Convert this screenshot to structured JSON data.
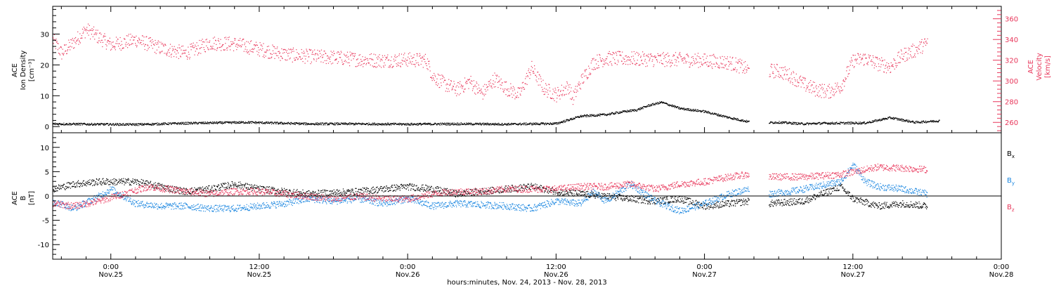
{
  "colors": {
    "density": "#000000",
    "velocity": "#e8365a",
    "bx": "#000000",
    "by": "#1a86e0",
    "bz": "#e8365a",
    "axis": "#000000"
  },
  "time_axis": {
    "label": "hours:minutes, Nov. 24, 2013 - Nov. 28, 2013",
    "range_hours_from_nov24_0000": [
      19.3,
      96
    ],
    "ticks": [
      {
        "time": "0:00",
        "date": "Nov.25"
      },
      {
        "time": "12:00",
        "date": "Nov.25"
      },
      {
        "time": "0:00",
        "date": "Nov.26"
      },
      {
        "time": "12:00",
        "date": "Nov.26"
      },
      {
        "time": "0:00",
        "date": "Nov.27"
      },
      {
        "time": "12:00",
        "date": "Nov.27"
      },
      {
        "time": "0:00",
        "date": "Nov.28"
      }
    ]
  },
  "chart_data": [
    {
      "type": "scatter",
      "panel": "plasma",
      "left_axis": {
        "label_lines": [
          "ACE",
          "Ion Density",
          "[cm⁻³]"
        ],
        "ylim": [
          -2,
          39
        ],
        "ticks": [
          "0",
          "10",
          "20",
          "30"
        ]
      },
      "right_axis": {
        "label_lines": [
          "ACE",
          "Velocity",
          "[km/s]"
        ],
        "ylim": [
          250,
          372
        ],
        "ticks": [
          "260",
          "280",
          "300",
          "320",
          "340",
          "360"
        ]
      },
      "series": [
        {
          "name": "Ion Density",
          "axis": "left",
          "x_hours": [
            19.3,
            22,
            26,
            30,
            35,
            40,
            44,
            48,
            52,
            56,
            58,
            60,
            62,
            64,
            65.5,
            66.5,
            67.5,
            68.5,
            70,
            72,
            74,
            76,
            78,
            80,
            81.5,
            85,
            87,
            89,
            91
          ],
          "values": [
            1.0,
            0.9,
            0.8,
            1.2,
            1.5,
            1.0,
            1.0,
            0.9,
            1.0,
            0.9,
            1.0,
            1.1,
            3.5,
            4.0,
            5.0,
            5.5,
            7.0,
            8.0,
            6.0,
            5.0,
            3.0,
            1.3,
            1.5,
            1.0,
            1.2,
            1.3,
            3.0,
            1.5,
            2.0
          ]
        },
        {
          "name": "Velocity",
          "axis": "right",
          "x_hours": [
            19.3,
            20,
            21,
            22,
            24,
            26,
            28,
            30,
            32,
            34,
            36,
            38,
            40,
            42,
            44,
            46,
            48,
            49.5,
            50,
            51,
            52,
            53,
            54,
            55,
            56,
            57,
            58,
            59,
            60,
            61,
            61.3,
            62,
            63,
            64,
            66,
            68,
            70,
            72,
            74,
            75,
            75.6,
            77.2,
            78,
            79,
            80,
            81,
            82,
            83,
            84,
            85,
            86,
            87,
            88,
            89,
            90
          ],
          "values": [
            340,
            327,
            338,
            350,
            335,
            340,
            332,
            327,
            337,
            336,
            331,
            326,
            324,
            323,
            321,
            320,
            321,
            320,
            305,
            297,
            292,
            300,
            288,
            302,
            293,
            287,
            313,
            293,
            287,
            295,
            283,
            300,
            318,
            322,
            322,
            321,
            321,
            320,
            318,
            314,
            310,
            310,
            310,
            305,
            297,
            292,
            290,
            295,
            320,
            322,
            317,
            314,
            325,
            330,
            337
          ]
        }
      ]
    },
    {
      "type": "scatter",
      "panel": "magnetic_field",
      "left_axis": {
        "label_lines": [
          "ACE",
          "B",
          "[nT]"
        ],
        "ylim": [
          -13,
          13
        ],
        "ticks": [
          "-10",
          "-5",
          "0",
          "5",
          "10"
        ]
      },
      "series": [
        {
          "name": "Bx",
          "x_hours": [
            19.3,
            21,
            23,
            26,
            30,
            32,
            34,
            36,
            40,
            44,
            48,
            50,
            52,
            56,
            58,
            60,
            62,
            64,
            66,
            68,
            70,
            72,
            74,
            75.6,
            77.2,
            80,
            83,
            84,
            86,
            88,
            90
          ],
          "values": [
            1.5,
            2.5,
            3.0,
            3.0,
            1.0,
            1.5,
            2.5,
            1.5,
            0.5,
            1.0,
            2.0,
            1.5,
            0.5,
            1.5,
            2.0,
            1.0,
            0.5,
            0.0,
            -0.5,
            -1.0,
            -0.5,
            -2.0,
            -1.5,
            -1.0,
            -1.5,
            -1.0,
            2.0,
            -0.5,
            -2.0,
            -1.5,
            -2.0
          ]
        },
        {
          "name": "By",
          "x_hours": [
            19.3,
            21,
            23,
            24,
            26,
            28,
            30,
            32,
            34,
            36,
            38,
            40,
            42,
            44,
            46,
            48,
            50,
            52,
            56,
            58,
            60,
            62,
            63,
            64,
            66,
            68,
            70,
            72,
            74,
            75.6,
            77.2,
            79,
            81,
            83,
            84,
            85,
            86,
            88,
            90
          ],
          "values": [
            -1.0,
            -2.5,
            0.0,
            1.5,
            -1.5,
            -2.0,
            -2.0,
            -2.5,
            -2.5,
            -2.0,
            -1.5,
            -0.5,
            -1.0,
            -0.5,
            -1.5,
            -0.5,
            -2.0,
            -1.5,
            -2.0,
            -2.5,
            -1.0,
            -1.5,
            1.0,
            -1.0,
            2.5,
            -1.0,
            -3.0,
            -1.5,
            0.5,
            1.5,
            0.5,
            1.0,
            2.0,
            3.0,
            6.5,
            3.0,
            2.0,
            1.5,
            0.5
          ]
        },
        {
          "name": "Bz",
          "x_hours": [
            19.3,
            21,
            23,
            25,
            27,
            30,
            32,
            34,
            36,
            38,
            40,
            42,
            44,
            46,
            48,
            50,
            52,
            54,
            56,
            58,
            60,
            62,
            64,
            66,
            68,
            70,
            72,
            74,
            75.6,
            77.2,
            80,
            83,
            84,
            86,
            88,
            90
          ],
          "values": [
            -1.5,
            -2.0,
            -1.0,
            0.5,
            2.0,
            1.0,
            0.5,
            1.0,
            1.0,
            0.5,
            0.0,
            -0.5,
            0.0,
            -0.5,
            -0.5,
            0.5,
            1.0,
            1.0,
            1.5,
            1.5,
            1.5,
            2.0,
            2.0,
            2.5,
            1.5,
            2.5,
            3.0,
            4.0,
            4.5,
            4.0,
            4.0,
            4.5,
            5.0,
            6.0,
            5.8,
            5.5
          ]
        }
      ],
      "legend": [
        {
          "main": "B",
          "sub": "x"
        },
        {
          "main": "B",
          "sub": "y"
        },
        {
          "main": "B",
          "sub": "z"
        }
      ]
    }
  ]
}
